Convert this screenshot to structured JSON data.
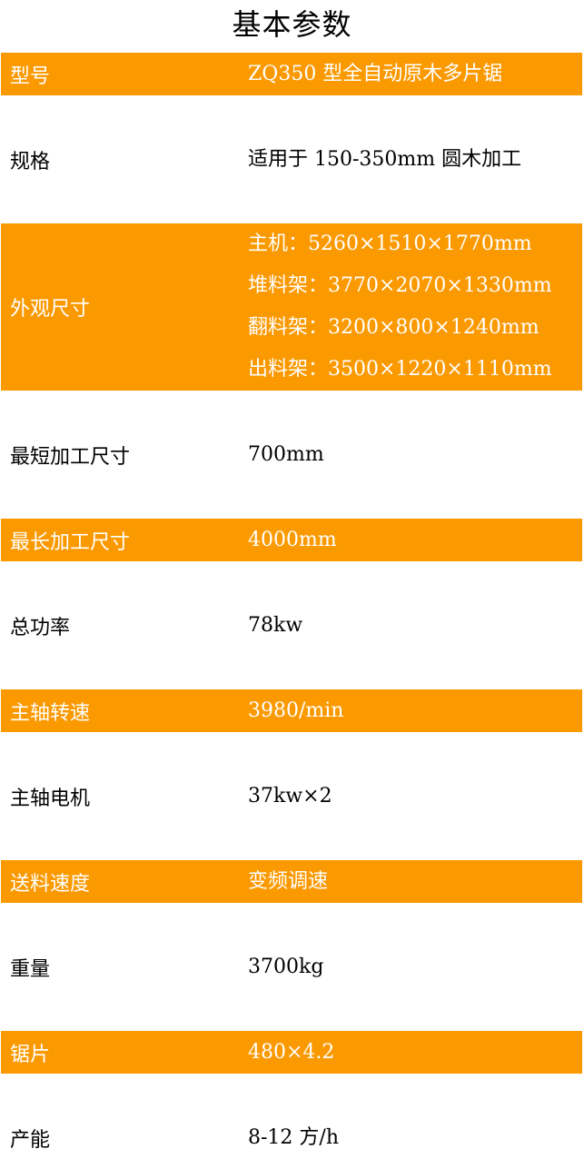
{
  "title": "基本参数",
  "rows": [
    {
      "label": "型号",
      "values": [
        "ZQ350 型全自动原木多片锯"
      ]
    },
    {
      "label": "规格",
      "values": [
        "适用于 150-350mm 圆木加工"
      ]
    },
    {
      "label": "外观尺寸",
      "values": [
        "主机：5260×1510×1770mm",
        "堆料架：3770×2070×1330mm",
        "翻料架：3200×800×1240mm",
        "出料架：3500×1220×1110mm"
      ]
    },
    {
      "label": "最短加工尺寸",
      "values": [
        "700mm"
      ]
    },
    {
      "label": "最长加工尺寸",
      "values": [
        "4000mm"
      ]
    },
    {
      "label": "总功率",
      "values": [
        "78kw"
      ]
    },
    {
      "label": "主轴转速",
      "values": [
        "3980/min"
      ]
    },
    {
      "label": "主轴电机",
      "values": [
        "37kw×2"
      ]
    },
    {
      "label": "送料速度",
      "values": [
        "变频调速"
      ]
    },
    {
      "label": "重量",
      "values": [
        "3700kg"
      ]
    },
    {
      "label": "锯片",
      "values": [
        "480×4.2"
      ]
    },
    {
      "label": "产能",
      "values": [
        "8-12 方/h"
      ]
    }
  ],
  "colors": {
    "highlight": "#fb9900",
    "text_on_highlight": "#ffffff"
  }
}
